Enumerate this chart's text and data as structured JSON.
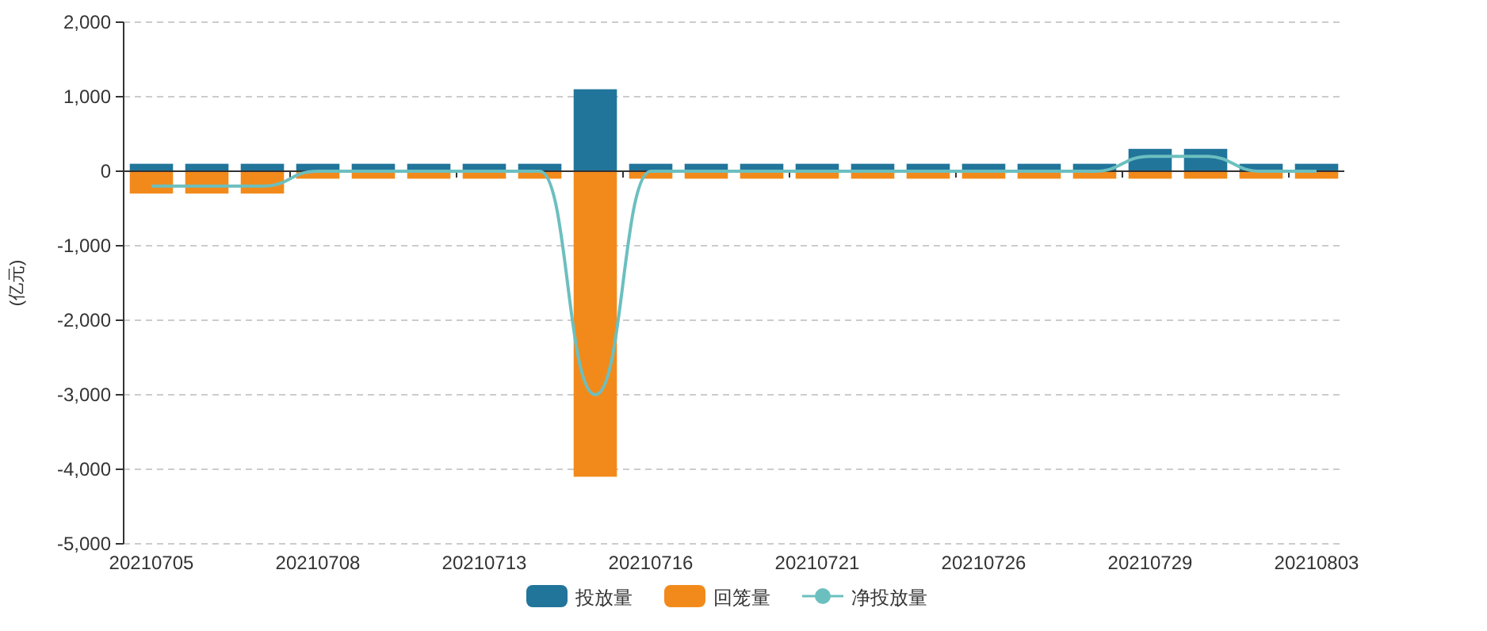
{
  "chart_data": {
    "type": "bar",
    "ylabel": "(亿元)",
    "stacked": true,
    "categories": [
      "20210705",
      null,
      null,
      "20210708",
      null,
      null,
      "20210713",
      null,
      null,
      "20210716",
      null,
      null,
      "20210721",
      null,
      null,
      "20210726",
      null,
      null,
      "20210729",
      null,
      null,
      "20210803"
    ],
    "series": [
      {
        "name": "投放量",
        "color": "#21759b",
        "values": [
          100,
          100,
          100,
          100,
          100,
          100,
          100,
          100,
          1100,
          100,
          100,
          100,
          100,
          100,
          100,
          100,
          100,
          100,
          300,
          300,
          100,
          100
        ]
      },
      {
        "name": "回笼量",
        "color": "#f28a1b",
        "values": [
          -300,
          -300,
          -300,
          -100,
          -100,
          -100,
          -100,
          -100,
          -4100,
          -100,
          -100,
          -100,
          -100,
          -100,
          -100,
          -100,
          -100,
          -100,
          -100,
          -100,
          -100,
          -100
        ]
      },
      {
        "name": "净投放量",
        "type": "line",
        "color": "#6cbfbf",
        "values": [
          -200,
          -200,
          -200,
          0,
          0,
          0,
          0,
          0,
          -3000,
          0,
          0,
          0,
          0,
          0,
          0,
          0,
          0,
          0,
          200,
          200,
          0,
          0
        ]
      }
    ],
    "ylim": [
      -5000,
      2000
    ],
    "yticks": [
      {
        "value": 2000,
        "label": "2,000"
      },
      {
        "value": 1000,
        "label": "1,000"
      },
      0,
      {
        "value": -1000,
        "label": "-1,000"
      },
      {
        "value": -2000,
        "label": "-2,000"
      },
      {
        "value": -3000,
        "label": "-3,000"
      },
      {
        "value": -4000,
        "label": "-4,000"
      },
      {
        "value": -5000,
        "label": "-5,000"
      }
    ],
    "grid": "y",
    "legend": "bottom"
  }
}
